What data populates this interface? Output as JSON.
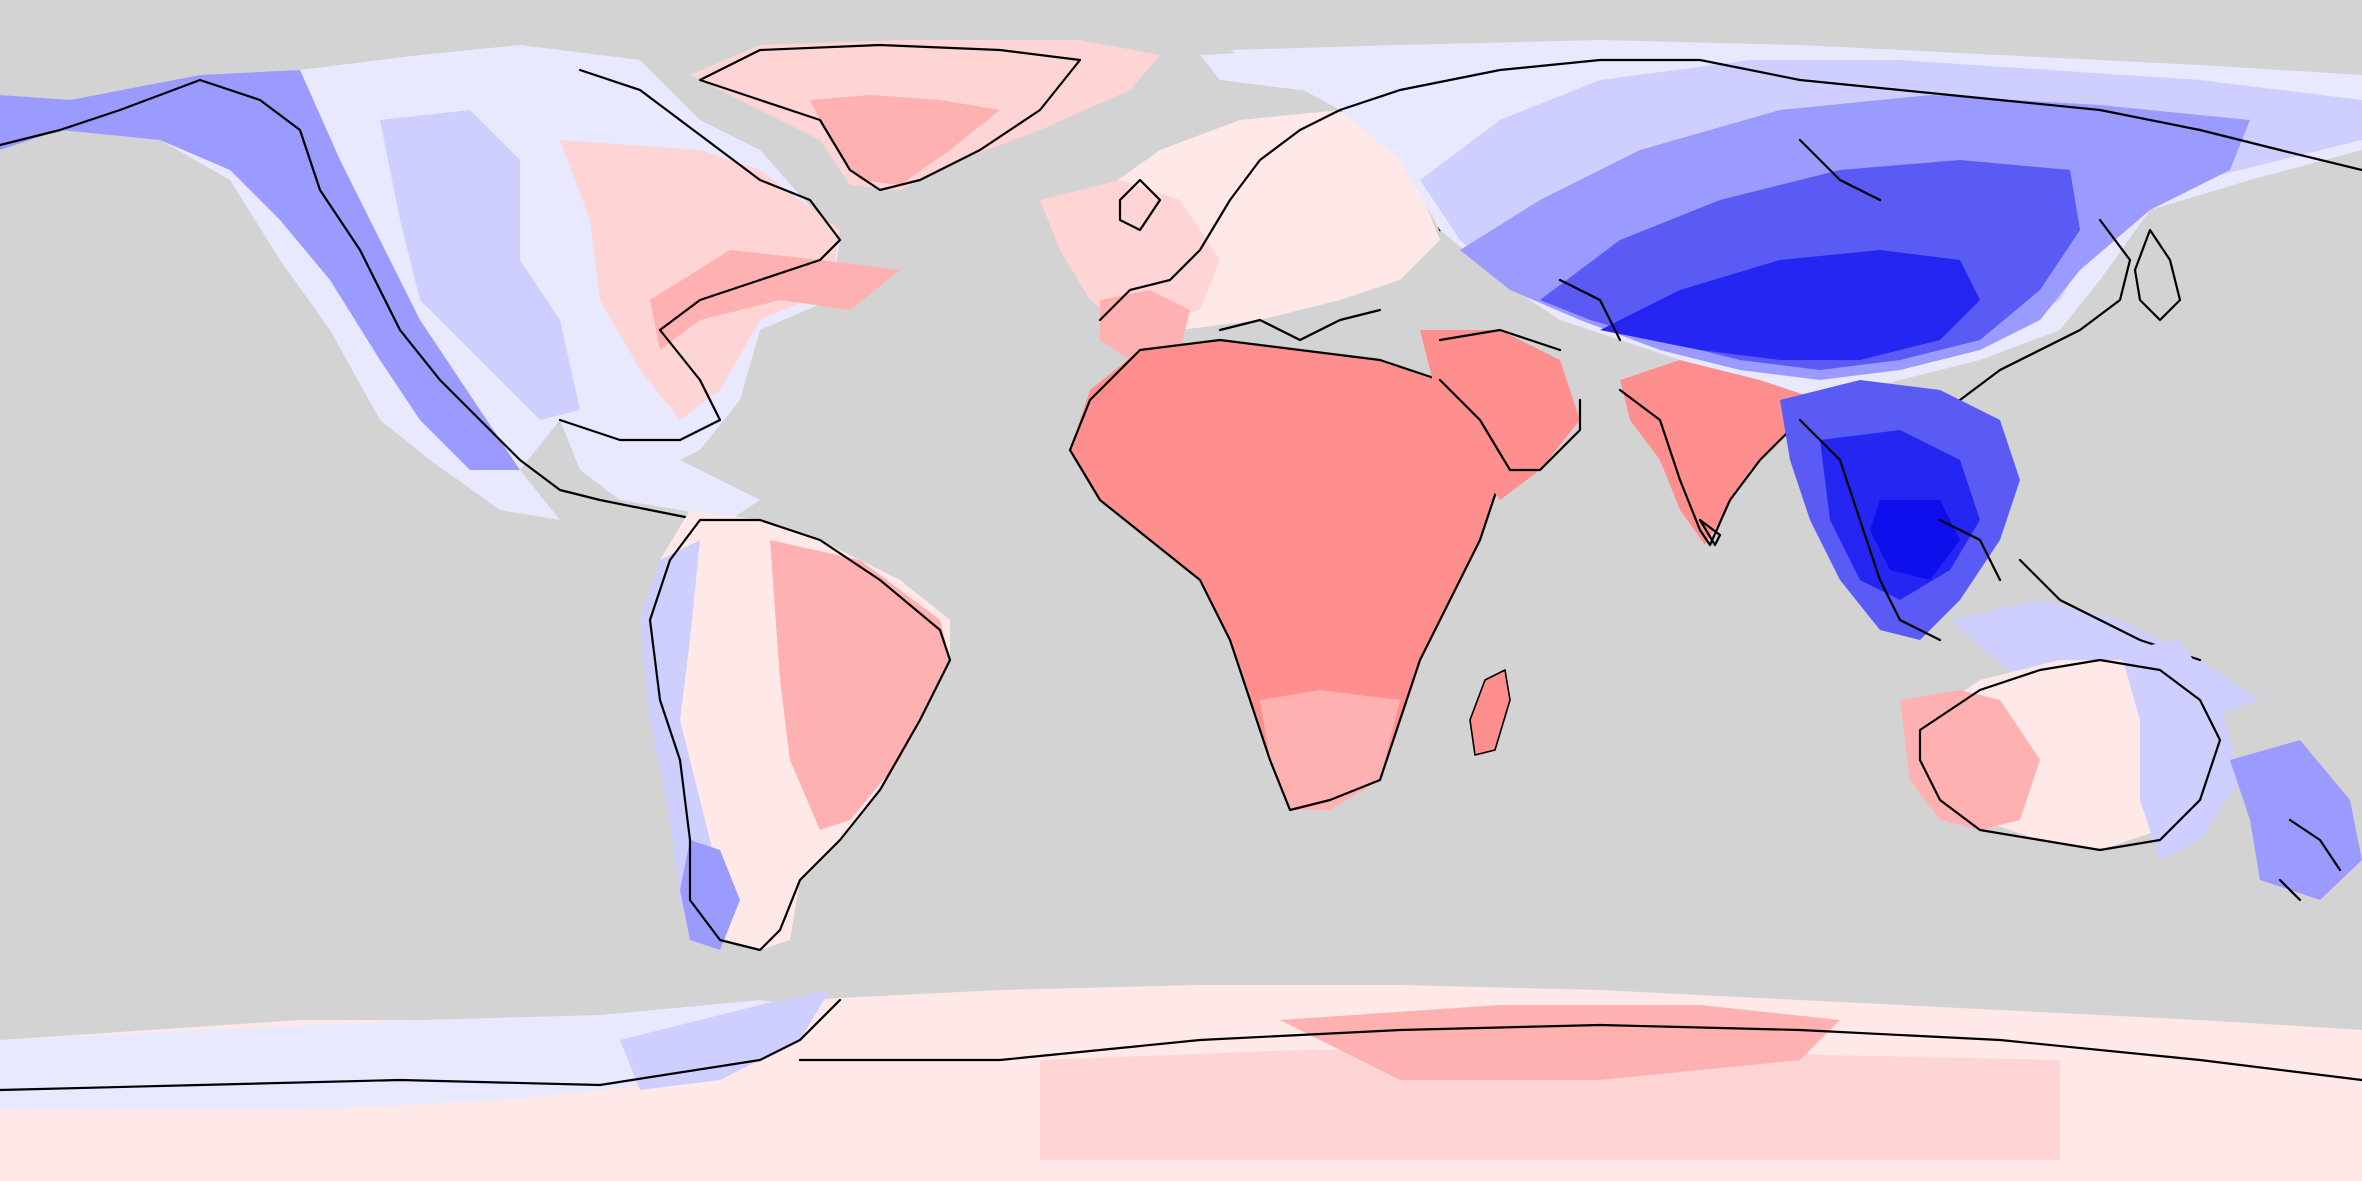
{
  "map": {
    "projection": "equirectangular",
    "ocean_color": "#d3d3d3",
    "coastline_color": "#000000",
    "colors": {
      "red_strong": "#ff8f8f",
      "red_medium": "#ffb0b0",
      "red_light": "#ffd4d4",
      "red_faint": "#ffe8e8",
      "blue_faint": "#e8e8ff",
      "blue_light": "#cfcfff",
      "blue_medium": "#9b9bff",
      "blue_strong": "#5a5af5",
      "blue_deep": "#2626f2",
      "blue_darkest": "#0f0fee"
    },
    "regions": [
      "north-america",
      "greenland",
      "south-america",
      "europe",
      "africa",
      "middle-east",
      "india",
      "asia",
      "southeast-asia",
      "australia",
      "antarctica",
      "madagascar",
      "new-zealand"
    ]
  }
}
